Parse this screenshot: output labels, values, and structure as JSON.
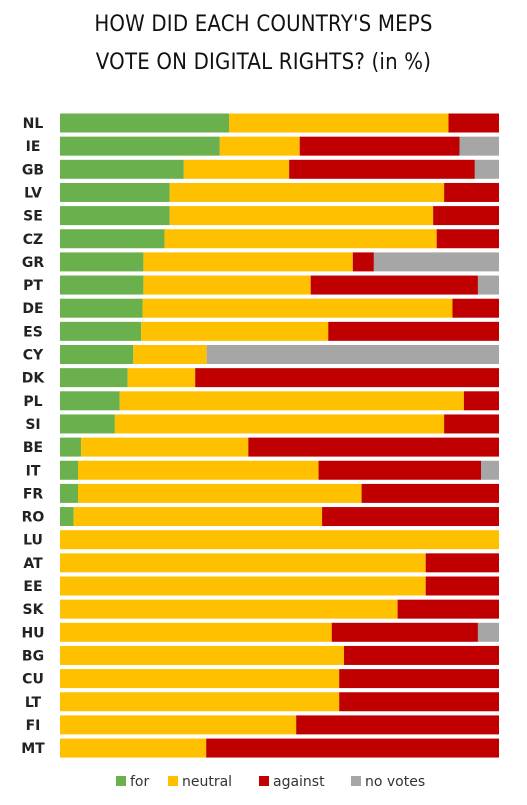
{
  "chart_data": {
    "type": "bar",
    "orientation": "horizontal",
    "stacked": true,
    "title": [
      "HOW DID EACH COUNTRY'S MEPS",
      "VOTE ON DIGITAL RIGHTS? (in %)"
    ],
    "xlim": [
      0,
      100
    ],
    "categories": [
      "NL",
      "IE",
      "GB",
      "LV",
      "SE",
      "CZ",
      "GR",
      "PT",
      "DE",
      "ES",
      "CY",
      "DK",
      "PL",
      "SI",
      "BE",
      "IT",
      "FR",
      "RO",
      "LU",
      "AT",
      "EE",
      "SK",
      "HU",
      "BG",
      "CU",
      "LT",
      "FI",
      "MT"
    ],
    "series": [
      {
        "name": "for",
        "color": "#6ab04c",
        "values": [
          38.5,
          36.4,
          28.2,
          25.0,
          25.0,
          23.8,
          19.0,
          19.0,
          18.8,
          18.5,
          16.7,
          15.4,
          13.6,
          12.5,
          4.8,
          4.1,
          4.1,
          3.1,
          0,
          0,
          0,
          0,
          0,
          0,
          0,
          0,
          0,
          0
        ]
      },
      {
        "name": "neutral",
        "color": "#ffc000",
        "values": [
          50.0,
          18.2,
          24.0,
          62.5,
          60.0,
          62.0,
          47.7,
          38.1,
          70.6,
          42.6,
          16.7,
          15.4,
          78.4,
          75.0,
          38.1,
          54.8,
          64.6,
          56.6,
          100,
          83.3,
          83.3,
          76.9,
          61.9,
          64.7,
          63.6,
          63.6,
          53.8,
          33.3
        ]
      },
      {
        "name": "against",
        "color": "#c00000",
        "values": [
          11.5,
          36.4,
          42.3,
          12.5,
          15.0,
          14.2,
          4.8,
          38.1,
          10.6,
          38.9,
          0,
          69.2,
          8.0,
          12.5,
          57.1,
          37.0,
          31.3,
          40.3,
          0,
          16.7,
          16.7,
          23.1,
          33.3,
          35.3,
          36.4,
          36.4,
          46.2,
          66.7
        ]
      },
      {
        "name": "no votes",
        "color": "#a6a6a6",
        "values": [
          0,
          9.0,
          5.5,
          0,
          0,
          0,
          28.5,
          4.8,
          0,
          0,
          66.6,
          0,
          0,
          0,
          0,
          4.1,
          0,
          0,
          0,
          0,
          0,
          0,
          4.8,
          0,
          0,
          0,
          0,
          0
        ]
      }
    ],
    "legend": [
      "for",
      "neutral",
      "against",
      "no votes"
    ],
    "legend_position": "bottom",
    "grid": false
  }
}
